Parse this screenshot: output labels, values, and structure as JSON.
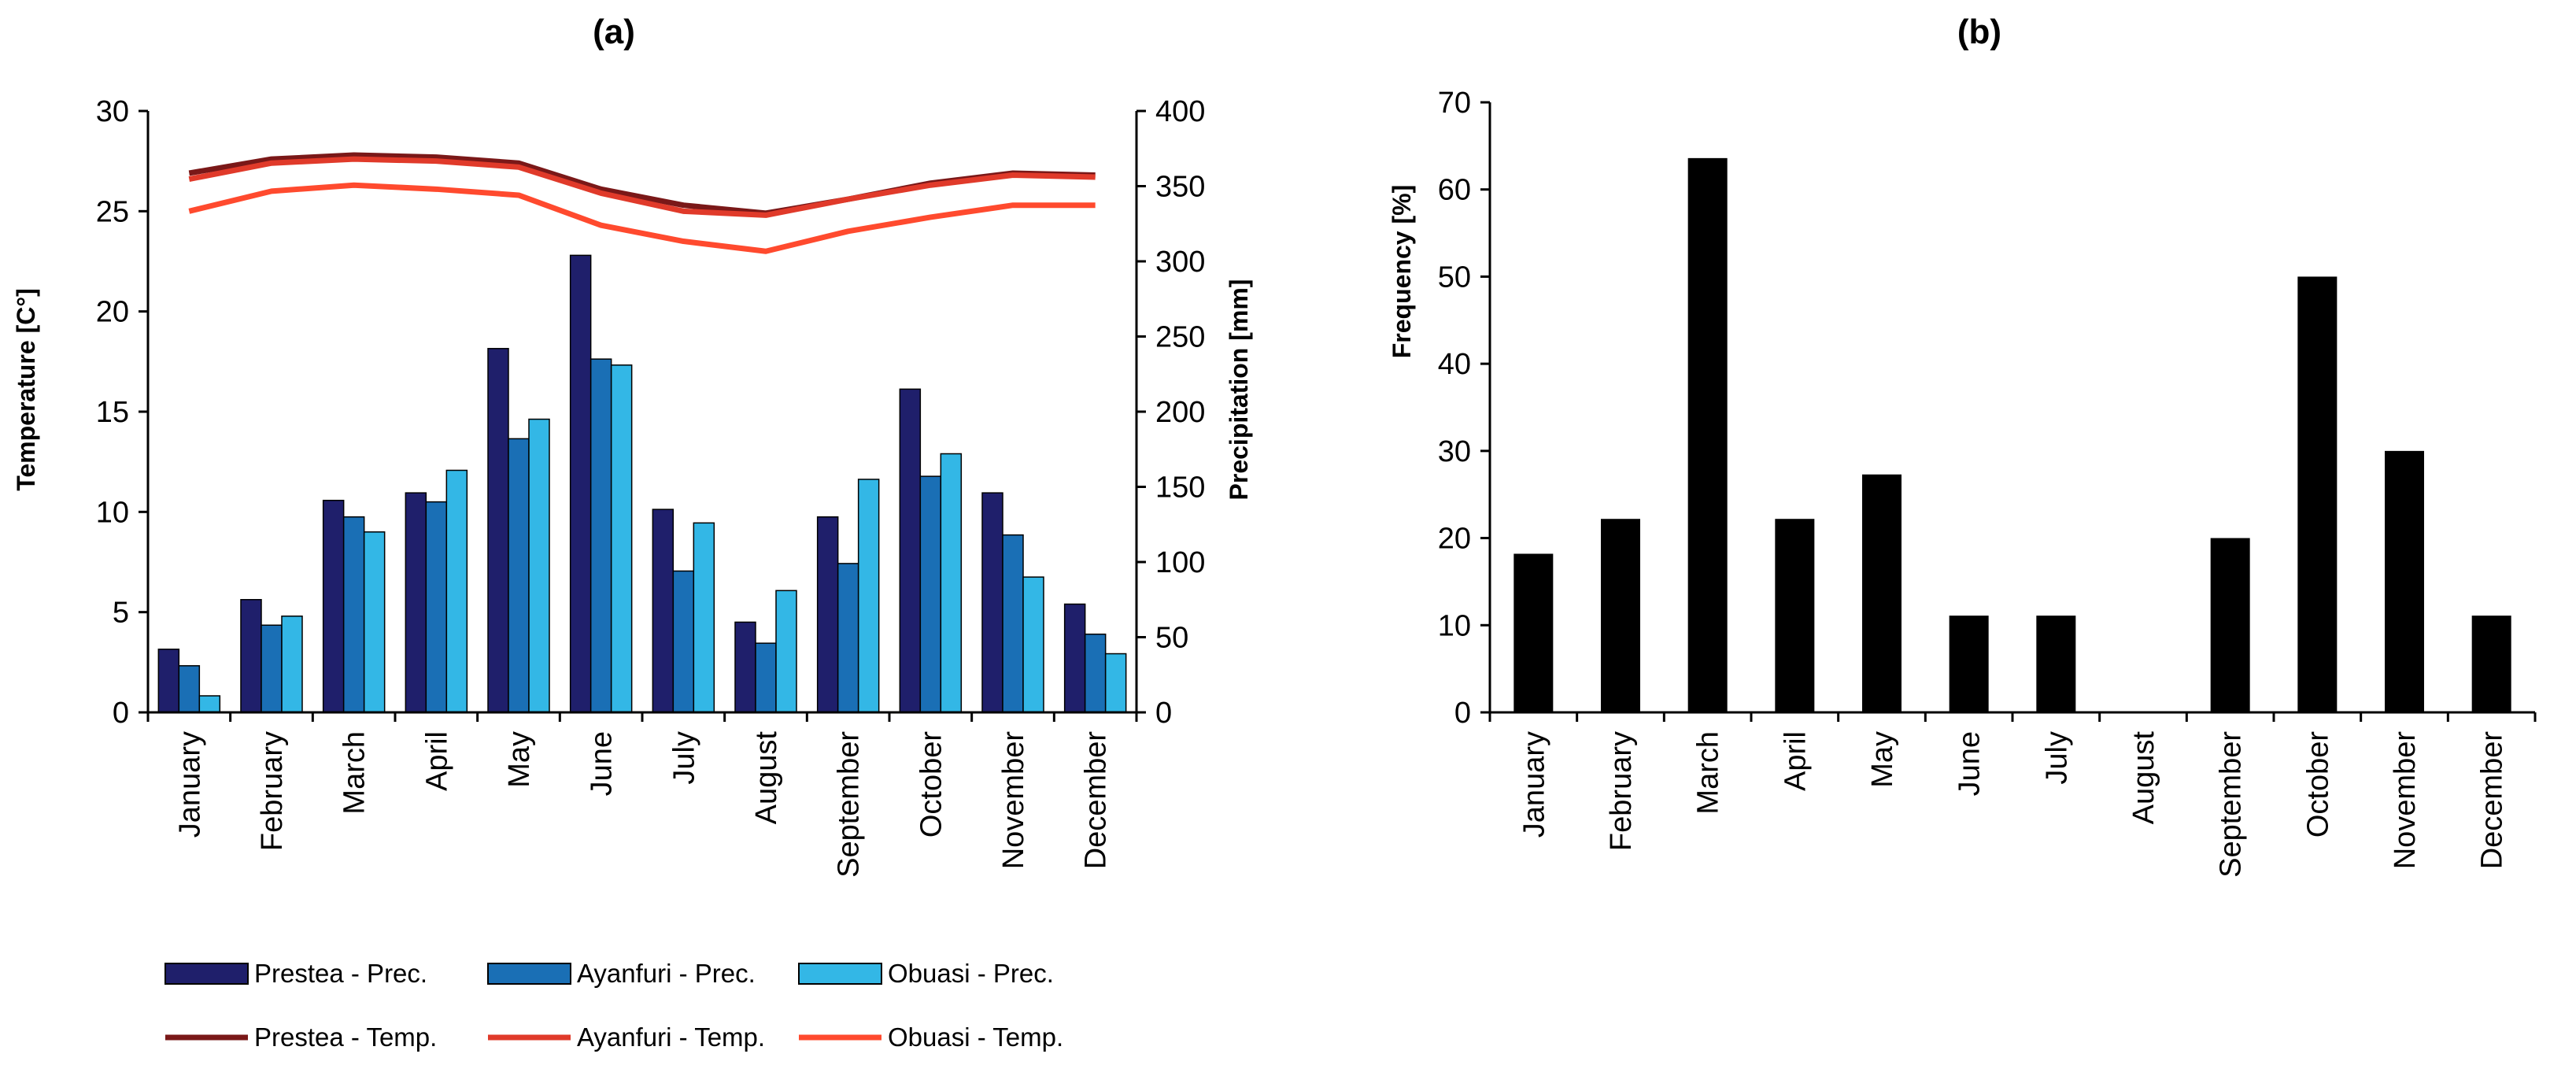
{
  "chart_data": [
    {
      "panel": "(a)",
      "type": "bar+line",
      "categories": [
        "January",
        "February",
        "March",
        "April",
        "May",
        "June",
        "July",
        "August",
        "September",
        "October",
        "November",
        "December"
      ],
      "ylabel": "Temperature [C°]",
      "ylim": [
        0,
        30
      ],
      "yticks": [
        0,
        5,
        10,
        15,
        20,
        25,
        30
      ],
      "y2label": "Precipitation [mm]",
      "y2lim": [
        0,
        400
      ],
      "y2ticks": [
        0,
        50,
        100,
        150,
        200,
        250,
        300,
        350,
        400
      ],
      "bar_series": [
        {
          "name": "Prestea - Prec.",
          "color": "#1f1f6b",
          "values": [
            42,
            75,
            141,
            146,
            242,
            304,
            135,
            60,
            130,
            215,
            146,
            72
          ]
        },
        {
          "name": "Ayanfuri - Prec.",
          "color": "#1a6fb5",
          "values": [
            31,
            58,
            130,
            140,
            182,
            235,
            94,
            46,
            99,
            157,
            118,
            52
          ]
        },
        {
          "name": "Obuasi - Prec.",
          "color": "#33b7e6",
          "values": [
            11,
            64,
            120,
            161,
            195,
            231,
            126,
            81,
            155,
            172,
            90,
            39
          ]
        }
      ],
      "line_series": [
        {
          "name": "Prestea - Temp.",
          "color": "#7a1818",
          "values": [
            26.9,
            27.6,
            27.8,
            27.7,
            27.4,
            26.1,
            25.3,
            24.9,
            25.6,
            26.4,
            26.9,
            26.8
          ]
        },
        {
          "name": "Ayanfuri - Temp.",
          "color": "#e03a2a",
          "values": [
            26.6,
            27.4,
            27.6,
            27.5,
            27.2,
            25.9,
            25.0,
            24.8,
            25.6,
            26.3,
            26.8,
            26.7
          ]
        },
        {
          "name": "Obuasi - Temp.",
          "color": "#ff4a2e",
          "values": [
            25.0,
            26.0,
            26.3,
            26.1,
            25.8,
            24.3,
            23.5,
            23.0,
            24.0,
            24.7,
            25.3,
            25.3
          ]
        }
      ],
      "legend": "bottom"
    },
    {
      "panel": "(b)",
      "type": "bar",
      "categories": [
        "January",
        "February",
        "March",
        "April",
        "May",
        "June",
        "July",
        "August",
        "September",
        "October",
        "November",
        "December"
      ],
      "values": [
        18.2,
        22.2,
        63.6,
        22.2,
        27.3,
        11.1,
        11.1,
        0,
        20.0,
        50.0,
        30.0,
        11.1
      ],
      "color": "#000000",
      "ylabel": "Frequency [%]",
      "ylim": [
        0,
        70
      ],
      "yticks": [
        0,
        10,
        20,
        30,
        40,
        50,
        60,
        70
      ]
    }
  ]
}
